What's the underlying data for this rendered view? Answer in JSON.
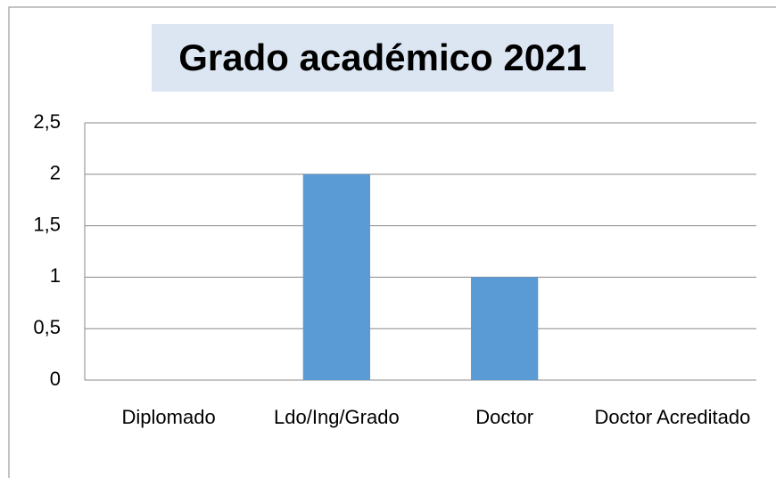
{
  "chart_data": {
    "type": "bar",
    "title": "Grado académico 2021",
    "categories": [
      "Diplomado",
      "Ldo/Ing/Grado",
      "Doctor",
      "Doctor Acreditado"
    ],
    "values": [
      0,
      2,
      1,
      0
    ],
    "color": "#5b9bd5",
    "ylim": [
      0,
      2.5
    ],
    "yticks": [
      0,
      {
        "value": 0.5,
        "label": "0,5"
      },
      1,
      {
        "value": 1.5,
        "label": "1,5"
      },
      2,
      {
        "value": 2.5,
        "label": "2,5"
      }
    ],
    "grid": true
  }
}
